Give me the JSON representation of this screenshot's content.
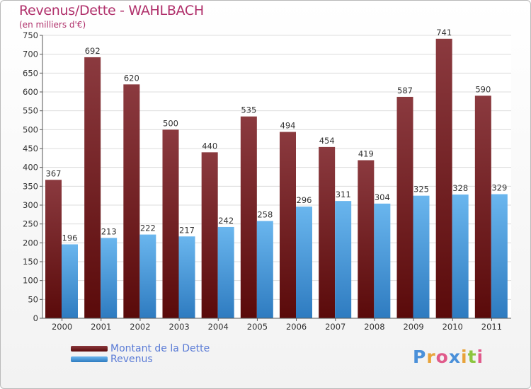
{
  "title": "Revenus/Dette - WAHLBACH",
  "subtitle": "(en milliers d'€)",
  "logo": "Proxiti",
  "colors": {
    "title": "#b0306b",
    "dette_top": "#8b3a3f",
    "dette_bottom": "#5a0a0a",
    "revenus_top": "#6ab6ee",
    "revenus_bottom": "#2e7bc0",
    "legend_text": "#5a7bd6"
  },
  "chart_data": {
    "type": "bar",
    "categories": [
      "2000",
      "2001",
      "2002",
      "2003",
      "2004",
      "2005",
      "2006",
      "2007",
      "2008",
      "2009",
      "2010",
      "2011"
    ],
    "series": [
      {
        "name": "Montant de la Dette",
        "values": [
          367,
          692,
          620,
          500,
          440,
          535,
          494,
          454,
          419,
          587,
          741,
          590
        ]
      },
      {
        "name": "Revenus",
        "values": [
          196,
          213,
          222,
          217,
          242,
          258,
          296,
          311,
          304,
          325,
          328,
          329
        ]
      }
    ],
    "yticks": [
      0,
      50,
      100,
      150,
      200,
      250,
      300,
      350,
      400,
      450,
      500,
      550,
      600,
      650,
      700,
      750
    ],
    "ylim": [
      0,
      750
    ],
    "grid": true,
    "legend_position": "bottom-left"
  }
}
